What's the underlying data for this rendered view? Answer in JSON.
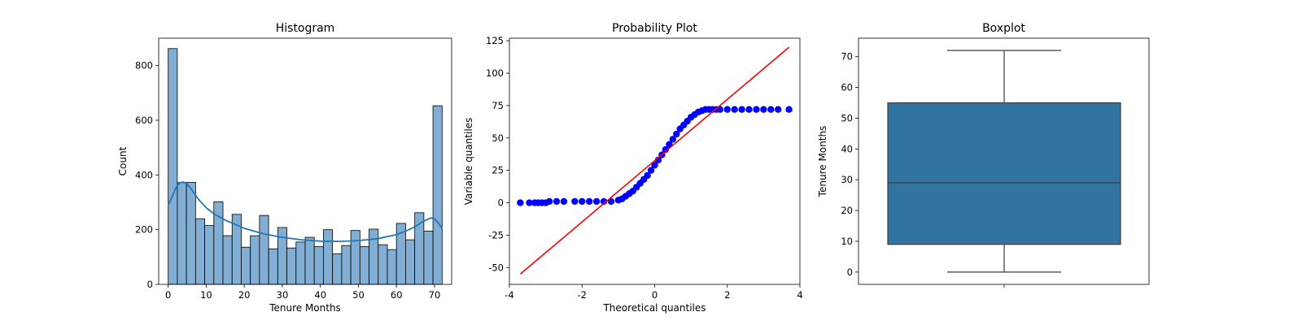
{
  "chart_data": [
    {
      "type": "bar",
      "title": "Histogram",
      "xlabel": "Tenure Months",
      "ylabel": "Count",
      "xlim": [
        -2.5,
        74.5
      ],
      "ylim": [
        0,
        900
      ],
      "xticks": [
        0,
        10,
        20,
        30,
        40,
        50,
        60,
        70
      ],
      "yticks": [
        0,
        200,
        400,
        600,
        800
      ],
      "bar_color": "#81aed2",
      "edge_color": "#000000",
      "bins": [
        {
          "x0": 0.0,
          "x1": 2.4,
          "count": 862
        },
        {
          "x0": 2.4,
          "x1": 4.8,
          "count": 372
        },
        {
          "x0": 4.8,
          "x1": 7.2,
          "count": 373
        },
        {
          "x0": 7.2,
          "x1": 9.6,
          "count": 240
        },
        {
          "x0": 9.6,
          "x1": 12.0,
          "count": 215
        },
        {
          "x0": 12.0,
          "x1": 14.4,
          "count": 302
        },
        {
          "x0": 14.4,
          "x1": 16.8,
          "count": 178
        },
        {
          "x0": 16.8,
          "x1": 19.2,
          "count": 256
        },
        {
          "x0": 19.2,
          "x1": 21.6,
          "count": 136
        },
        {
          "x0": 21.6,
          "x1": 24.0,
          "count": 178
        },
        {
          "x0": 24.0,
          "x1": 26.4,
          "count": 252
        },
        {
          "x0": 26.4,
          "x1": 28.8,
          "count": 130
        },
        {
          "x0": 28.8,
          "x1": 31.2,
          "count": 208
        },
        {
          "x0": 31.2,
          "x1": 33.6,
          "count": 133
        },
        {
          "x0": 33.6,
          "x1": 36.0,
          "count": 155
        },
        {
          "x0": 36.0,
          "x1": 38.4,
          "count": 172
        },
        {
          "x0": 38.4,
          "x1": 40.8,
          "count": 138
        },
        {
          "x0": 40.8,
          "x1": 43.2,
          "count": 200
        },
        {
          "x0": 43.2,
          "x1": 45.6,
          "count": 112
        },
        {
          "x0": 45.6,
          "x1": 48.0,
          "count": 142
        },
        {
          "x0": 48.0,
          "x1": 50.4,
          "count": 197
        },
        {
          "x0": 50.4,
          "x1": 52.8,
          "count": 138
        },
        {
          "x0": 52.8,
          "x1": 55.2,
          "count": 202
        },
        {
          "x0": 55.2,
          "x1": 57.6,
          "count": 145
        },
        {
          "x0": 57.6,
          "x1": 60.0,
          "count": 127
        },
        {
          "x0": 60.0,
          "x1": 62.4,
          "count": 223
        },
        {
          "x0": 62.4,
          "x1": 64.8,
          "count": 163
        },
        {
          "x0": 64.8,
          "x1": 67.2,
          "count": 262
        },
        {
          "x0": 67.2,
          "x1": 69.6,
          "count": 195
        },
        {
          "x0": 69.6,
          "x1": 72.0,
          "count": 653
        }
      ],
      "kde": {
        "color": "#1f77b4",
        "x": [
          0,
          1,
          2,
          3,
          4,
          5,
          6,
          8,
          10,
          12,
          15,
          20,
          25,
          30,
          35,
          40,
          45,
          50,
          55,
          60,
          63,
          65,
          67,
          69,
          70,
          71,
          72
        ],
        "y": [
          290,
          320,
          352,
          372,
          374,
          366,
          350,
          310,
          280,
          258,
          235,
          205,
          185,
          172,
          163,
          158,
          157,
          160,
          167,
          182,
          198,
          212,
          230,
          243,
          240,
          225,
          205
        ]
      }
    },
    {
      "type": "scatter",
      "title": "Probability Plot",
      "xlabel": "Theoretical quantiles",
      "ylabel": "Variable quantiles",
      "xlim": [
        -4.0,
        4.0
      ],
      "ylim": [
        -63,
        127
      ],
      "xticks": [
        -4,
        -2,
        0,
        2,
        4
      ],
      "yticks": [
        -50,
        -25,
        0,
        25,
        50,
        75,
        100,
        125
      ],
      "point_color": "#0000ff",
      "fit_line": {
        "color": "#ff0000",
        "x": [
          -3.7,
          3.7
        ],
        "y": [
          -55,
          120
        ]
      },
      "quantile_points": {
        "x": [
          -3.7,
          -3.45,
          -3.3,
          -3.2,
          -3.1,
          -3.0,
          -2.9,
          -2.7,
          -2.5,
          -2.2,
          -2.0,
          -1.8,
          -1.6,
          -1.4,
          -1.2,
          -1.0,
          -0.9,
          -0.8,
          -0.7,
          -0.6,
          -0.5,
          -0.4,
          -0.3,
          -0.2,
          -0.1,
          0.0,
          0.1,
          0.2,
          0.3,
          0.4,
          0.5,
          0.6,
          0.7,
          0.8,
          0.9,
          1.0,
          1.1,
          1.2,
          1.3,
          1.4,
          1.5,
          1.6,
          1.7,
          1.8,
          2.0,
          2.2,
          2.4,
          2.6,
          2.8,
          3.0,
          3.2,
          3.4,
          3.7
        ],
        "y": [
          0,
          0,
          0,
          0,
          0,
          0,
          1,
          1,
          1,
          1,
          1,
          1,
          1,
          1,
          1,
          2,
          3,
          5,
          7,
          9,
          12,
          15,
          18,
          21,
          25,
          29,
          33,
          37,
          41,
          45,
          49,
          53,
          57,
          60,
          63,
          66,
          68,
          70,
          71,
          72,
          72,
          72,
          72,
          72,
          72,
          72,
          72,
          72,
          72,
          72,
          72,
          72,
          72
        ]
      }
    },
    {
      "type": "box",
      "title": "Boxplot",
      "ylabel": "Tenure Months",
      "ylim": [
        -4,
        76
      ],
      "yticks": [
        0,
        10,
        20,
        30,
        40,
        50,
        60,
        70
      ],
      "box_color": "#3274a1",
      "line_color": "#3d3d3d",
      "stats": {
        "whisker_low": 0,
        "q1": 9,
        "median": 29,
        "q3": 55,
        "whisker_high": 72
      }
    }
  ]
}
